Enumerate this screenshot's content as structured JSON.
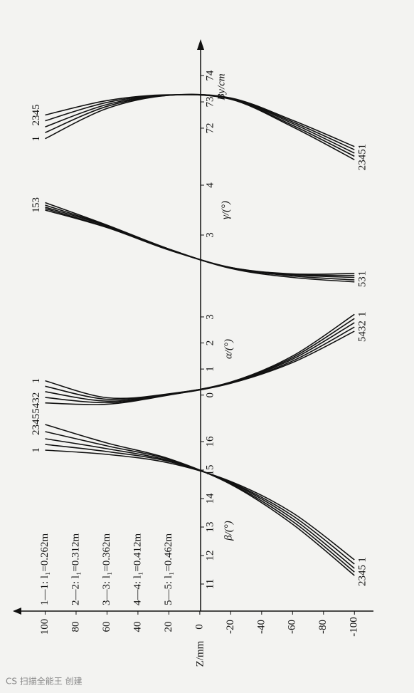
{
  "chart_data": {
    "type": "line",
    "x_label": "Z/mm",
    "x": [
      100,
      60,
      20,
      -20,
      -60,
      -100
    ],
    "xlim": [
      120,
      -110
    ],
    "xticks": [
      100,
      80,
      60,
      40,
      20,
      0,
      -20,
      -40,
      -60,
      -80,
      -100
    ],
    "color": "#111111",
    "legend": [
      "1—1: l₁=0.262m",
      "2—2: l₁=0.312m",
      "3—3: l₁=0.362m",
      "4—4: l₁=0.412m",
      "5—5: l₁=0.462m"
    ],
    "panels": [
      {
        "y_label": "β/(°)",
        "ylim": [
          10.5,
          17.5
        ],
        "yticks": [
          11,
          12,
          13,
          14,
          15,
          16
        ],
        "left_labels": [
          "2345",
          "1"
        ],
        "right_labels": [
          "1",
          "2345"
        ],
        "series": [
          {
            "values": [
              15.7,
              15.55,
              15.25,
              14.6,
              13.5,
              11.85
            ]
          },
          {
            "values": [
              15.9,
              15.65,
              15.3,
              14.57,
              13.4,
              11.7
            ]
          },
          {
            "values": [
              16.1,
              15.75,
              15.33,
              14.55,
              13.3,
              11.55
            ]
          },
          {
            "values": [
              16.35,
              15.85,
              15.37,
              14.52,
              13.2,
              11.42
            ]
          },
          {
            "values": [
              16.6,
              15.95,
              15.4,
              14.5,
              13.1,
              11.3
            ]
          }
        ]
      },
      {
        "y_label": "α/(°)",
        "ylim": [
          -0.8,
          3.6
        ],
        "yticks": [
          0,
          1,
          2,
          3
        ],
        "left_labels": [
          "1",
          "5432"
        ],
        "right_labels": [
          "1",
          "5432"
        ],
        "series": [
          {
            "values": [
              0.55,
              -0.1,
              0.05,
              0.5,
              1.5,
              3.1
            ]
          },
          {
            "values": [
              0.34,
              -0.16,
              0.04,
              0.49,
              1.44,
              2.94
            ]
          },
          {
            "values": [
              0.13,
              -0.23,
              0.03,
              0.48,
              1.38,
              2.78
            ]
          },
          {
            "values": [
              -0.09,
              -0.29,
              0.01,
              0.46,
              1.31,
              2.61
            ]
          },
          {
            "values": [
              -0.3,
              -0.35,
              0.0,
              0.45,
              1.25,
              2.45
            ]
          }
        ]
      },
      {
        "y_label": "γ/(°)",
        "ylim": [
          1.8,
          4.4
        ],
        "yticks": [
          3,
          4
        ],
        "left_labels": [
          "53",
          "1"
        ],
        "right_labels": [
          "1",
          "53"
        ],
        "series": [
          {
            "values": [
              3.5,
              3.15,
              2.7,
              2.35,
              2.22,
              2.23
            ]
          },
          {
            "values": [
              3.53,
              3.16,
              2.71,
              2.35,
              2.21,
              2.19
            ]
          },
          {
            "values": [
              3.56,
              3.18,
              2.71,
              2.34,
              2.2,
              2.15
            ]
          },
          {
            "values": [
              3.6,
              3.19,
              2.72,
              2.34,
              2.18,
              2.1
            ]
          },
          {
            "values": [
              3.65,
              3.2,
              2.72,
              2.33,
              2.15,
              2.06
            ]
          }
        ]
      },
      {
        "y_label": "By/cm",
        "ylim": [
          70.4,
          74.6
        ],
        "yticks": [
          72,
          73,
          74
        ],
        "left_labels": [
          "2345",
          "1"
        ],
        "right_labels": [
          "1",
          "2345"
        ],
        "series": [
          {
            "values": [
              71.6,
              72.75,
              73.25,
              73.15,
              72.3,
              71.3
            ]
          },
          {
            "values": [
              71.83,
              72.83,
              73.25,
              73.14,
              72.24,
              71.18
            ]
          },
          {
            "values": [
              72.05,
              72.9,
              73.26,
              73.13,
              72.18,
              71.05
            ]
          },
          {
            "values": [
              72.28,
              72.98,
              73.26,
              73.11,
              72.11,
              70.93
            ]
          },
          {
            "values": [
              72.5,
              73.05,
              73.27,
              73.1,
              72.05,
              70.8
            ]
          }
        ]
      }
    ]
  },
  "footer": "CS 扫描全能王 创建"
}
